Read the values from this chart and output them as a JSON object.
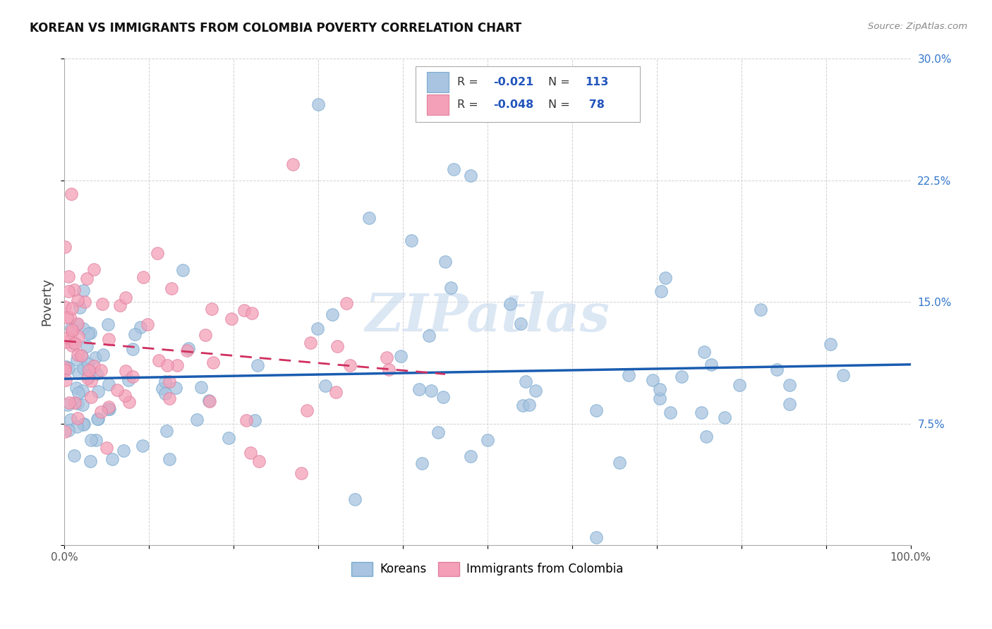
{
  "title": "KOREAN VS IMMIGRANTS FROM COLOMBIA POVERTY CORRELATION CHART",
  "source": "Source: ZipAtlas.com",
  "ylabel": "Poverty",
  "watermark": "ZIPatlas",
  "xmin": 0.0,
  "xmax": 1.0,
  "ymin": 0.0,
  "ymax": 0.3,
  "series1_color": "#a8c4e0",
  "series1_edge": "#7aaad0",
  "series2_color": "#f4a0b8",
  "series2_edge": "#e080a0",
  "trendline1_color": "#1a5cb0",
  "trendline2_color": "#d03060",
  "background": "#ffffff",
  "grid_color": "#cccccc",
  "legend_r1": "-0.021",
  "legend_n1": "113",
  "legend_r2": "-0.048",
  "legend_n2": "78",
  "text_color": "#333333",
  "blue_label_color": "#2255bb",
  "ytick_color": "#3377cc"
}
